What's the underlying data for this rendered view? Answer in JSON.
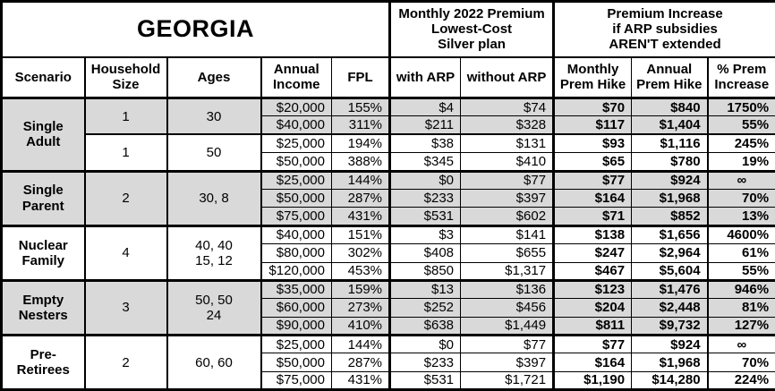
{
  "colors": {
    "row_shade": "#d9d9d9",
    "border": "#000000",
    "background": "#ffffff"
  },
  "chart_data": {
    "type": "table",
    "title": "GEORGIA",
    "header_groups": {
      "premium": "Monthly 2022 Premium\nLowest-Cost\nSilver plan",
      "increase": "Premium Increase\nif ARP subsidies\nAREN'T extended"
    },
    "columns": [
      "Scenario",
      "Household\nSize",
      "Ages",
      "Annual\nIncome",
      "FPL",
      "with ARP",
      "without ARP",
      "Monthly\nPrem Hike",
      "Annual\nPrem Hike",
      "% Prem\nIncrease"
    ],
    "groups": [
      {
        "scenario": "Single\nAdult",
        "subgroups": [
          {
            "household_size": "1",
            "ages": "30",
            "shaded": true,
            "rows": [
              {
                "income": "$20,000",
                "fpl": "155%",
                "with_arp": "$4",
                "without_arp": "$74",
                "monthly_hike": "$70",
                "annual_hike": "$840",
                "pct_increase": "1750%"
              },
              {
                "income": "$40,000",
                "fpl": "311%",
                "with_arp": "$211",
                "without_arp": "$328",
                "monthly_hike": "$117",
                "annual_hike": "$1,404",
                "pct_increase": "55%"
              }
            ]
          },
          {
            "household_size": "1",
            "ages": "50",
            "shaded": false,
            "rows": [
              {
                "income": "$25,000",
                "fpl": "194%",
                "with_arp": "$38",
                "without_arp": "$131",
                "monthly_hike": "$93",
                "annual_hike": "$1,116",
                "pct_increase": "245%"
              },
              {
                "income": "$50,000",
                "fpl": "388%",
                "with_arp": "$345",
                "without_arp": "$410",
                "monthly_hike": "$65",
                "annual_hike": "$780",
                "pct_increase": "19%"
              }
            ]
          }
        ]
      },
      {
        "scenario": "Single\nParent",
        "subgroups": [
          {
            "household_size": "2",
            "ages": "30, 8",
            "shaded": true,
            "rows": [
              {
                "income": "$25,000",
                "fpl": "144%",
                "with_arp": "$0",
                "without_arp": "$77",
                "monthly_hike": "$77",
                "annual_hike": "$924",
                "pct_increase": "∞"
              },
              {
                "income": "$50,000",
                "fpl": "287%",
                "with_arp": "$233",
                "without_arp": "$397",
                "monthly_hike": "$164",
                "annual_hike": "$1,968",
                "pct_increase": "70%"
              },
              {
                "income": "$75,000",
                "fpl": "431%",
                "with_arp": "$531",
                "without_arp": "$602",
                "monthly_hike": "$71",
                "annual_hike": "$852",
                "pct_increase": "13%"
              }
            ]
          }
        ]
      },
      {
        "scenario": "Nuclear\nFamily",
        "subgroups": [
          {
            "household_size": "4",
            "ages": "40, 40\n15, 12",
            "shaded": false,
            "rows": [
              {
                "income": "$40,000",
                "fpl": "151%",
                "with_arp": "$3",
                "without_arp": "$141",
                "monthly_hike": "$138",
                "annual_hike": "$1,656",
                "pct_increase": "4600%"
              },
              {
                "income": "$80,000",
                "fpl": "302%",
                "with_arp": "$408",
                "without_arp": "$655",
                "monthly_hike": "$247",
                "annual_hike": "$2,964",
                "pct_increase": "61%"
              },
              {
                "income": "$120,000",
                "fpl": "453%",
                "with_arp": "$850",
                "without_arp": "$1,317",
                "monthly_hike": "$467",
                "annual_hike": "$5,604",
                "pct_increase": "55%"
              }
            ]
          }
        ]
      },
      {
        "scenario": "Empty\nNesters",
        "subgroups": [
          {
            "household_size": "3",
            "ages": "50, 50\n24",
            "shaded": true,
            "rows": [
              {
                "income": "$35,000",
                "fpl": "159%",
                "with_arp": "$13",
                "without_arp": "$136",
                "monthly_hike": "$123",
                "annual_hike": "$1,476",
                "pct_increase": "946%"
              },
              {
                "income": "$60,000",
                "fpl": "273%",
                "with_arp": "$252",
                "without_arp": "$456",
                "monthly_hike": "$204",
                "annual_hike": "$2,448",
                "pct_increase": "81%"
              },
              {
                "income": "$90,000",
                "fpl": "410%",
                "with_arp": "$638",
                "without_arp": "$1,449",
                "monthly_hike": "$811",
                "annual_hike": "$9,732",
                "pct_increase": "127%"
              }
            ]
          }
        ]
      },
      {
        "scenario": "Pre-\nRetirees",
        "subgroups": [
          {
            "household_size": "2",
            "ages": "60, 60",
            "shaded": false,
            "rows": [
              {
                "income": "$25,000",
                "fpl": "144%",
                "with_arp": "$0",
                "without_arp": "$77",
                "monthly_hike": "$77",
                "annual_hike": "$924",
                "pct_increase": "∞"
              },
              {
                "income": "$50,000",
                "fpl": "287%",
                "with_arp": "$233",
                "without_arp": "$397",
                "monthly_hike": "$164",
                "annual_hike": "$1,968",
                "pct_increase": "70%"
              },
              {
                "income": "$75,000",
                "fpl": "431%",
                "with_arp": "$531",
                "without_arp": "$1,721",
                "monthly_hike": "$1,190",
                "annual_hike": "$14,280",
                "pct_increase": "224%"
              }
            ]
          }
        ]
      }
    ]
  }
}
